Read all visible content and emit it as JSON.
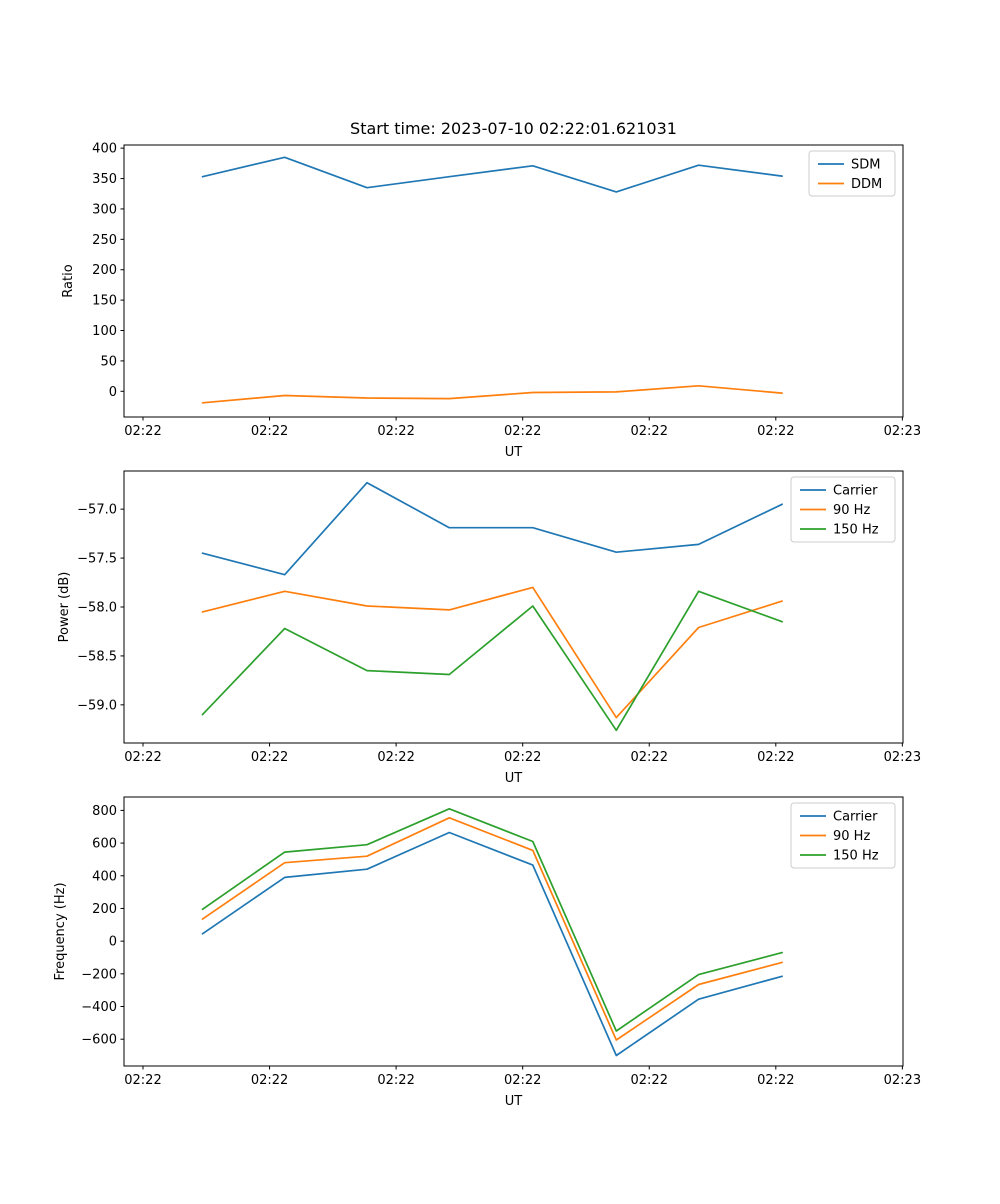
{
  "figure": {
    "title": "Start time: 2023-07-10 02:22:01.621031",
    "background": "#ffffff",
    "text_color": "#000000"
  },
  "colors": {
    "blue": "#1f77b4",
    "orange": "#ff7f0e",
    "green": "#2ca02c"
  },
  "chart_data": [
    {
      "type": "line",
      "title": "Start time: 2023-07-10 02:22:01.621031",
      "xlabel": "UT",
      "ylabel": "Ratio",
      "x_seconds_after_022200": [
        4.7,
        11.2,
        17.7,
        24.2,
        30.8,
        37.4,
        43.9,
        50.5
      ],
      "xlim_seconds": [
        -1.5,
        60.05
      ],
      "x_tick_seconds": [
        0,
        10,
        20,
        30,
        40,
        50,
        60
      ],
      "x_tick_labels": [
        "02:22",
        "02:22",
        "02:22",
        "02:22",
        "02:22",
        "02:22",
        "02:23"
      ],
      "ylim": [
        -42.3,
        405.2
      ],
      "y_ticks": [
        0,
        50,
        100,
        150,
        200,
        250,
        300,
        350,
        400
      ],
      "y_tick_labels": [
        "0",
        "50",
        "100",
        "150",
        "200",
        "250",
        "300",
        "350",
        "400"
      ],
      "grid": false,
      "legend_position": "upper right",
      "series": [
        {
          "name": "SDM",
          "color": "#1f77b4",
          "values": [
            353,
            385,
            335,
            353,
            371,
            328,
            372,
            354
          ]
        },
        {
          "name": "DDM",
          "color": "#ff7f0e",
          "values": [
            -19,
            -7,
            -11,
            -12,
            -2,
            -1,
            9,
            -3
          ]
        }
      ]
    },
    {
      "type": "line",
      "title": "",
      "xlabel": "UT",
      "ylabel": "Power (dB)",
      "x_seconds_after_022200": [
        4.7,
        11.2,
        17.7,
        24.2,
        30.8,
        37.4,
        43.9,
        50.5
      ],
      "xlim_seconds": [
        -1.5,
        60.05
      ],
      "x_tick_seconds": [
        0,
        10,
        20,
        30,
        40,
        50,
        60
      ],
      "x_tick_labels": [
        "02:22",
        "02:22",
        "02:22",
        "02:22",
        "02:22",
        "02:22",
        "02:23"
      ],
      "ylim": [
        -59.39,
        -56.61
      ],
      "y_ticks": [
        -59.0,
        -58.5,
        -58.0,
        -57.5,
        -57.0
      ],
      "y_tick_labels": [
        "−59.0",
        "−58.5",
        "−58.0",
        "−57.5",
        "−57.0"
      ],
      "grid": false,
      "legend_position": "upper right",
      "series": [
        {
          "name": "Carrier",
          "color": "#1f77b4",
          "values": [
            -57.45,
            -57.67,
            -56.73,
            -57.19,
            -57.19,
            -57.44,
            -57.36,
            -56.95
          ]
        },
        {
          "name": "90 Hz",
          "color": "#ff7f0e",
          "values": [
            -58.05,
            -57.84,
            -57.99,
            -58.03,
            -57.8,
            -59.13,
            -58.21,
            -57.94
          ]
        },
        {
          "name": "150 Hz",
          "color": "#2ca02c",
          "values": [
            -59.1,
            -58.22,
            -58.65,
            -58.69,
            -57.99,
            -59.26,
            -57.84,
            -58.15
          ]
        }
      ]
    },
    {
      "type": "line",
      "title": "",
      "xlabel": "UT",
      "ylabel": "Frequency (Hz)",
      "x_seconds_after_022200": [
        4.7,
        11.2,
        17.7,
        24.2,
        30.8,
        37.4,
        43.9,
        50.5
      ],
      "xlim_seconds": [
        -1.5,
        60.05
      ],
      "x_tick_seconds": [
        0,
        10,
        20,
        30,
        40,
        50,
        60
      ],
      "x_tick_labels": [
        "02:22",
        "02:22",
        "02:22",
        "02:22",
        "02:22",
        "02:22",
        "02:23"
      ],
      "ylim": [
        -764,
        882
      ],
      "y_ticks": [
        -600,
        -400,
        -200,
        0,
        200,
        400,
        600,
        800
      ],
      "y_tick_labels": [
        "−600",
        "−400",
        "−200",
        "0",
        "200",
        "400",
        "600",
        "800"
      ],
      "grid": false,
      "legend_position": "upper right",
      "series": [
        {
          "name": "Carrier",
          "color": "#1f77b4",
          "values": [
            45,
            390,
            440,
            665,
            465,
            -700,
            -355,
            -215
          ]
        },
        {
          "name": "90 Hz",
          "color": "#ff7f0e",
          "values": [
            135,
            480,
            520,
            755,
            555,
            -605,
            -265,
            -130
          ]
        },
        {
          "name": "150 Hz",
          "color": "#2ca02c",
          "values": [
            195,
            545,
            590,
            810,
            610,
            -550,
            -205,
            -70
          ]
        }
      ]
    }
  ]
}
